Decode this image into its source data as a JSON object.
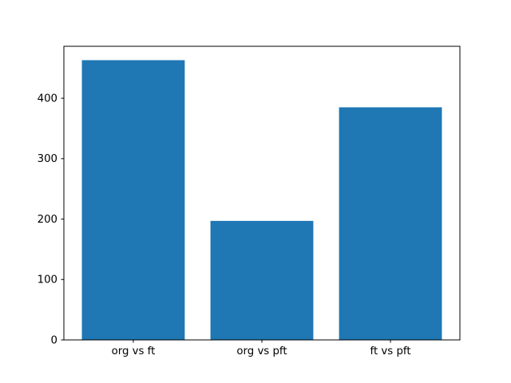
{
  "figure": {
    "background": "#ffffff"
  },
  "chart_data": {
    "type": "bar",
    "categories": [
      "org vs ft",
      "org vs pft",
      "ft vs pft"
    ],
    "values": [
      463,
      197,
      385
    ],
    "title": "",
    "xlabel": "",
    "ylabel": "",
    "ylim": [
      0,
      486
    ],
    "yticks": [
      0,
      100,
      200,
      300,
      400
    ],
    "bar_color": "#1f77b4",
    "bar_width_fraction": 0.8,
    "grid": false,
    "legend": false,
    "spine_color": "#000000",
    "tick_color": "#000000",
    "tick_label_color": "#000000"
  }
}
